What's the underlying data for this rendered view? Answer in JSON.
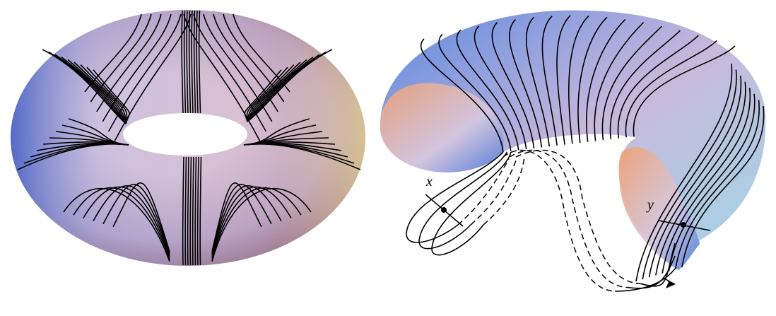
{
  "annotations": {
    "left_point": "x",
    "right_point": "y"
  }
}
